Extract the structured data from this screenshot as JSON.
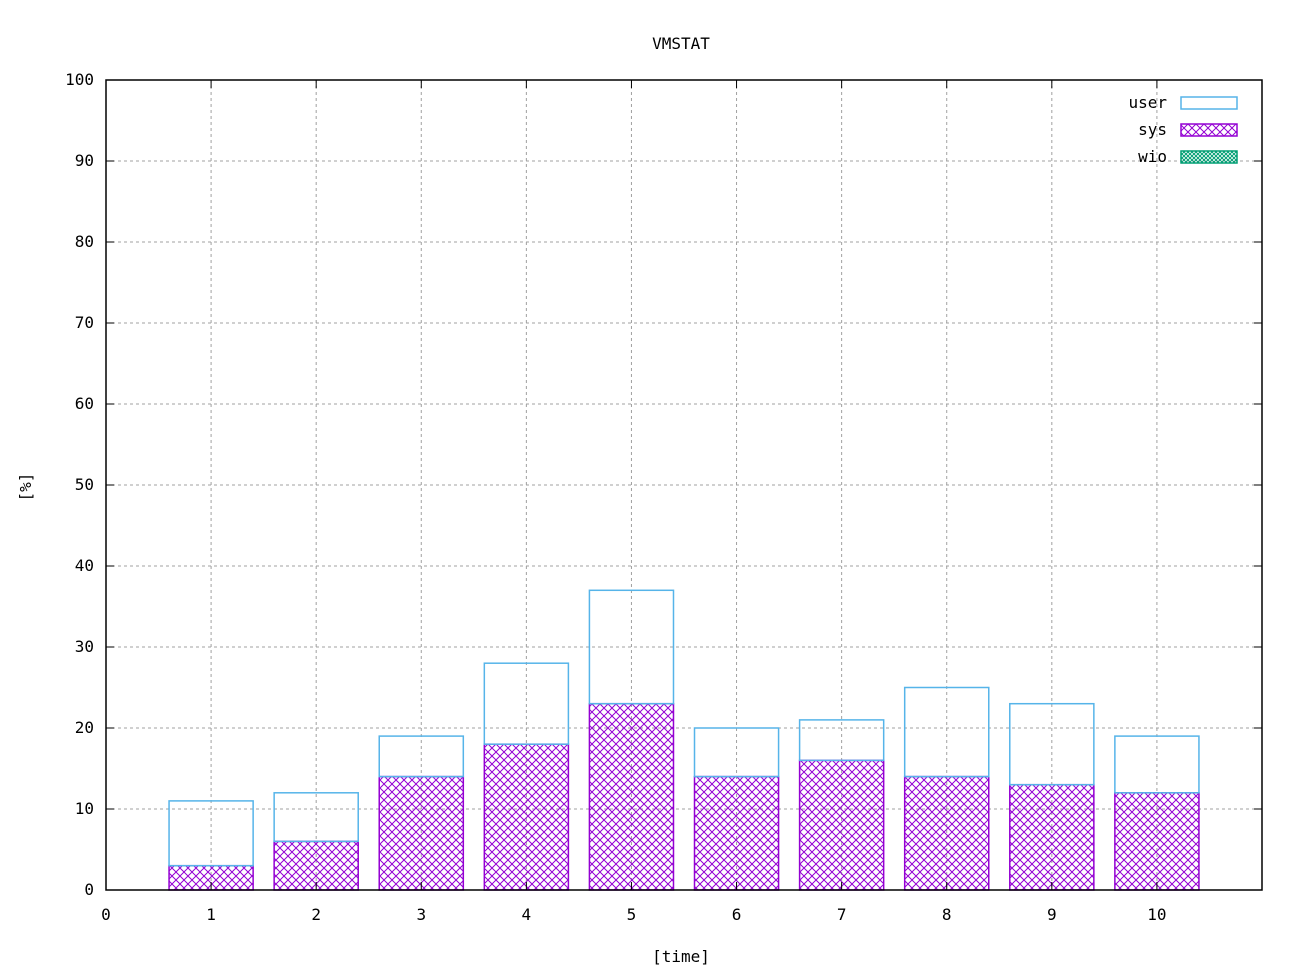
{
  "chart_data": {
    "type": "bar",
    "stacked": true,
    "title": "VMSTAT",
    "xlabel": "[time]",
    "ylabel": "[%]",
    "xlim": [
      0,
      11
    ],
    "ylim": [
      0,
      100
    ],
    "xticks": [
      "0",
      "1",
      "2",
      "3",
      "4",
      "5",
      "6",
      "7",
      "8",
      "9",
      "10"
    ],
    "yticks": [
      "0",
      "10",
      "20",
      "30",
      "40",
      "50",
      "60",
      "70",
      "80",
      "90",
      "100"
    ],
    "grid": true,
    "legend_position": "top-right",
    "categories": [
      "1",
      "2",
      "3",
      "4",
      "5",
      "6",
      "7",
      "8",
      "9",
      "10"
    ],
    "series": [
      {
        "name": "user",
        "values": [
          8,
          6,
          5,
          10,
          14,
          6,
          5,
          11,
          10,
          7
        ],
        "color": "#56b4e9",
        "pattern": "empty"
      },
      {
        "name": "sys",
        "values": [
          3,
          6,
          14,
          18,
          23,
          14,
          16,
          14,
          13,
          12
        ],
        "color": "#9400d3",
        "pattern": "crosshatch"
      },
      {
        "name": "wio",
        "values": [
          0,
          0,
          0,
          0,
          0,
          0,
          0,
          0,
          0,
          0
        ],
        "color": "#009e73",
        "pattern": "dense-crosshatch"
      }
    ]
  }
}
